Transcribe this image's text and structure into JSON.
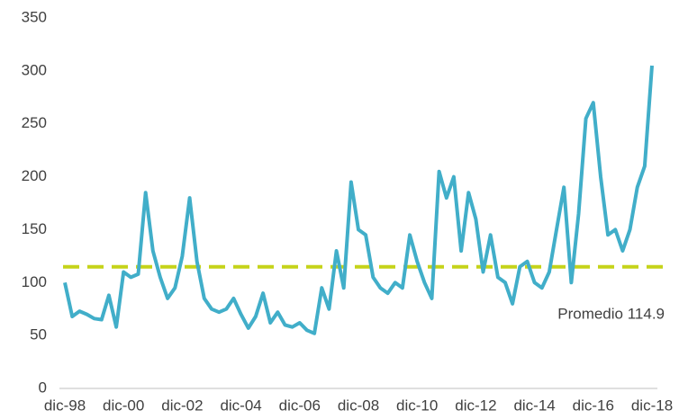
{
  "chart_data": {
    "type": "line",
    "categories": [
      "dic-98",
      null,
      null,
      null,
      null,
      null,
      null,
      null,
      "dic-00",
      null,
      null,
      null,
      null,
      null,
      null,
      null,
      "dic-02",
      null,
      null,
      null,
      null,
      null,
      null,
      null,
      "dic-04",
      null,
      null,
      null,
      null,
      null,
      null,
      null,
      "dic-06",
      null,
      null,
      null,
      null,
      null,
      null,
      null,
      "dic-08",
      null,
      null,
      null,
      null,
      null,
      null,
      null,
      "dic-10",
      null,
      null,
      null,
      null,
      null,
      null,
      null,
      "dic-12",
      null,
      null,
      null,
      null,
      null,
      null,
      null,
      "dic-14",
      null,
      null,
      null,
      null,
      null,
      null,
      null,
      "dic-16",
      null,
      null,
      null,
      null,
      null,
      null,
      null,
      "dic-18"
    ],
    "series": [
      {
        "color": "#41aec9",
        "values": [
          100,
          68,
          73,
          70,
          66,
          65,
          88,
          58,
          110,
          105,
          108,
          185,
          130,
          105,
          85,
          95,
          125,
          180,
          120,
          85,
          75,
          72,
          75,
          85,
          70,
          57,
          68,
          90,
          62,
          72,
          60,
          58,
          62,
          55,
          52,
          95,
          75,
          130,
          95,
          195,
          150,
          145,
          105,
          95,
          90,
          100,
          95,
          145,
          120,
          100,
          85,
          205,
          180,
          200,
          130,
          185,
          160,
          110,
          145,
          105,
          100,
          80,
          115,
          120,
          100,
          95,
          110,
          150,
          190,
          100,
          165,
          255,
          270,
          200,
          145,
          150,
          130,
          150,
          190,
          210,
          305
        ]
      }
    ],
    "ylim": [
      0,
      350
    ],
    "yticks": [
      0,
      50,
      100,
      150,
      200,
      250,
      300,
      350
    ],
    "reference_line": {
      "value": 114.9,
      "color": "#c5d31a",
      "label": "Promedio 114.9"
    }
  }
}
